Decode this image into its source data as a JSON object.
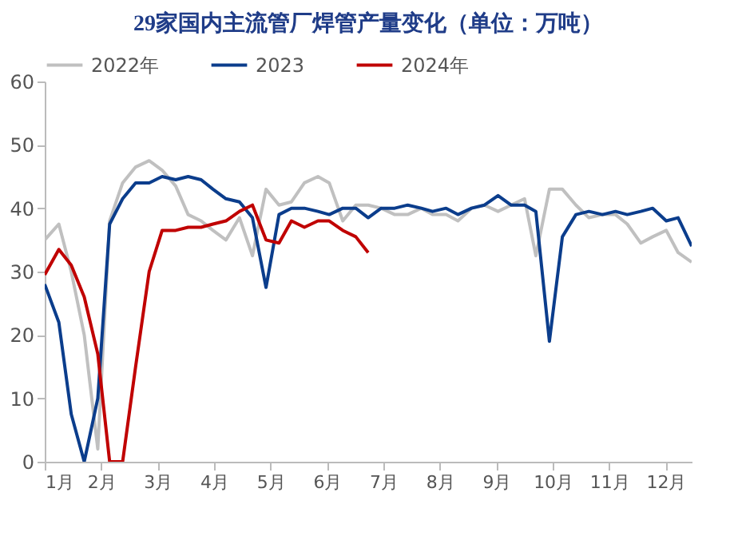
{
  "chart_data": {
    "type": "line",
    "title": "29家国内主流管厂焊管产量变化（单位：万吨）",
    "xlim": [
      1,
      12.46
    ],
    "xticks": [
      {
        "value": 1,
        "label": "1月"
      },
      {
        "value": 2,
        "label": "2月"
      },
      {
        "value": 3,
        "label": "3月"
      },
      {
        "value": 4,
        "label": "4月"
      },
      {
        "value": 5,
        "label": "5月"
      },
      {
        "value": 6,
        "label": "6月"
      },
      {
        "value": 7,
        "label": "7月"
      },
      {
        "value": 8,
        "label": "8月"
      },
      {
        "value": 9,
        "label": "9月"
      },
      {
        "value": 10,
        "label": "10月"
      },
      {
        "value": 11,
        "label": "11月"
      },
      {
        "value": 12,
        "label": "12月"
      }
    ],
    "ylim": [
      0,
      60
    ],
    "yticks": [
      0,
      10,
      20,
      30,
      40,
      50,
      60
    ],
    "grid": false,
    "legend": "top",
    "marker": "none",
    "line_style": "solid",
    "series": [
      {
        "name": "2022年",
        "color": "#c0c0c0",
        "x": [
          1.0,
          1.25,
          1.47,
          1.7,
          1.94,
          2.15,
          2.38,
          2.61,
          2.85,
          3.08,
          3.32,
          3.54,
          3.77,
          3.98,
          4.21,
          4.45,
          4.68,
          4.92,
          5.15,
          5.37,
          5.6,
          5.84,
          6.04,
          6.28,
          6.51,
          6.73,
          6.96,
          7.2,
          7.43,
          7.67,
          7.87,
          8.11,
          8.32,
          8.56,
          8.79,
          9.03,
          9.26,
          9.5,
          9.7,
          9.94,
          10.17,
          10.41,
          10.64,
          10.88,
          11.11,
          11.32,
          11.56,
          11.77,
          12.01,
          12.22,
          12.46
        ],
        "values": [
          35,
          37.5,
          30,
          20,
          2,
          38,
          44,
          46.5,
          47.5,
          46,
          43.5,
          39,
          38,
          36.5,
          35,
          38.5,
          32.5,
          43,
          40.5,
          41,
          44,
          45,
          44,
          38,
          40.5,
          40.5,
          40,
          39,
          39,
          40,
          39,
          39,
          38,
          40,
          40.5,
          39.5,
          40.5,
          41.5,
          32.5,
          43,
          43,
          40.5,
          38.5,
          39,
          39,
          37.5,
          34.5,
          35.5,
          36.5,
          33,
          31.5
        ]
      },
      {
        "name": "2023",
        "color": "#0b3d8c",
        "x": [
          1.0,
          1.25,
          1.47,
          1.7,
          1.94,
          2.15,
          2.38,
          2.61,
          2.85,
          3.08,
          3.32,
          3.54,
          3.77,
          3.98,
          4.21,
          4.45,
          4.68,
          4.92,
          5.15,
          5.37,
          5.6,
          5.84,
          6.04,
          6.28,
          6.51,
          6.73,
          6.96,
          7.2,
          7.43,
          7.67,
          7.87,
          8.11,
          8.32,
          8.56,
          8.79,
          9.03,
          9.26,
          9.5,
          9.7,
          9.94,
          10.17,
          10.41,
          10.64,
          10.88,
          11.11,
          11.32,
          11.56,
          11.77,
          12.01,
          12.22,
          12.46
        ],
        "values": [
          28,
          22,
          7.5,
          0,
          10,
          37.5,
          41.5,
          44,
          44,
          45,
          44.5,
          45,
          44.5,
          43,
          41.5,
          41,
          38.5,
          27.5,
          39,
          40,
          40,
          39.5,
          39,
          40,
          40,
          38.5,
          40,
          40,
          40.5,
          40,
          39.5,
          40,
          39,
          40,
          40.5,
          42,
          40.5,
          40.5,
          39.5,
          19,
          35.5,
          39,
          39.5,
          39,
          39.5,
          39,
          39.5,
          40,
          38,
          38.5,
          34
        ]
      },
      {
        "name": "2024年",
        "color": "#c00000",
        "x": [
          1.0,
          1.25,
          1.47,
          1.7,
          1.94,
          2.15,
          2.38,
          2.61,
          2.85,
          3.08,
          3.32,
          3.54,
          3.77,
          3.98,
          4.21,
          4.45,
          4.68,
          4.92,
          5.15,
          5.37,
          5.6,
          5.84,
          6.04,
          6.28,
          6.51,
          6.73
        ],
        "values": [
          29.5,
          33.5,
          31,
          26,
          17,
          0,
          0,
          15,
          30,
          36.5,
          36.5,
          37,
          37,
          37.5,
          38,
          39.5,
          40.5,
          35,
          34.5,
          38,
          37,
          38,
          38,
          36.5,
          35.5,
          33
        ]
      }
    ]
  }
}
